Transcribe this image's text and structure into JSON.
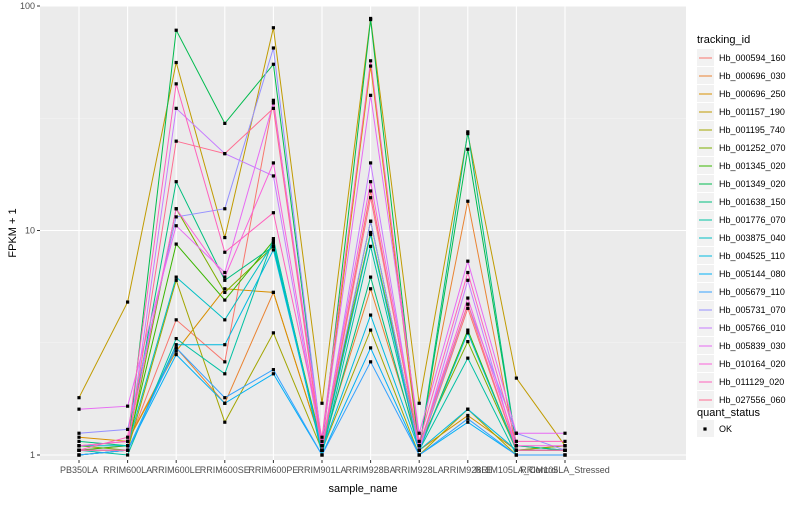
{
  "chart_data": {
    "type": "line",
    "xlabel": "sample_name",
    "ylabel": "FPKM + 1",
    "y_scale": "log10",
    "ylim": [
      0.95,
      100
    ],
    "y_ticks": [
      1,
      10,
      100
    ],
    "y_tick_labels": [
      "1",
      "10",
      "100"
    ],
    "categories": [
      "PB350LA",
      "RRIM600LA",
      "RRIM600LE",
      "RRIM600SE",
      "RRIM600PE",
      "RRIM901LA",
      "RRIM928BA",
      "RRIM928LA",
      "RRIM928LE",
      "RRIM105LA_Control",
      "RRIM105LA_Stressed"
    ],
    "legend_color_title": "tracking_id",
    "legend_shape_title": "quant_status",
    "legend_shape_entries": [
      "OK"
    ],
    "grid": true,
    "legend_position": "right",
    "series": [
      {
        "name": "Hb_000594_160",
        "color": "#F8766D",
        "values": [
          1.05,
          1.1,
          4.0,
          2.6,
          38,
          1.05,
          15,
          1.05,
          4.5,
          1.05,
          1.05
        ]
      },
      {
        "name": "Hb_000696_030",
        "color": "#EA8331",
        "values": [
          1.1,
          1.15,
          3.0,
          1.7,
          5.3,
          1.1,
          5.5,
          1.1,
          13.5,
          1.05,
          1.1
        ]
      },
      {
        "name": "Hb_000696_250",
        "color": "#D89000",
        "values": [
          1.2,
          1.15,
          2.9,
          5.5,
          5.3,
          1.1,
          54,
          1.05,
          1.5,
          1.05,
          1.05
        ]
      },
      {
        "name": "Hb_001157_190",
        "color": "#C09B00",
        "values": [
          1.8,
          4.8,
          56,
          9.3,
          80,
          1.7,
          88,
          1.7,
          27,
          2.2,
          1.1
        ]
      },
      {
        "name": "Hb_001195_740",
        "color": "#A3A500",
        "values": [
          1.0,
          1.05,
          6.0,
          1.4,
          3.5,
          1.05,
          3.6,
          1.0,
          1.6,
          1.0,
          1.0
        ]
      },
      {
        "name": "Hb_001252_070",
        "color": "#7CAE00",
        "values": [
          1.1,
          1.05,
          12.5,
          5.3,
          8.5,
          1.1,
          9.8,
          1.1,
          3.2,
          1.05,
          1.1
        ]
      },
      {
        "name": "Hb_001345_020",
        "color": "#39B600",
        "values": [
          1.05,
          1.1,
          8.7,
          4.9,
          9.0,
          1.05,
          11.0,
          1.05,
          3.6,
          1.05,
          1.05
        ]
      },
      {
        "name": "Hb_001349_020",
        "color": "#00BB4E",
        "values": [
          1.0,
          1.05,
          78,
          30,
          55,
          1.1,
          87,
          1.05,
          23,
          1.1,
          1.05
        ]
      },
      {
        "name": "Hb_001638_150",
        "color": "#00BF7D",
        "values": [
          1.15,
          1.1,
          16.5,
          6.0,
          8.5,
          1.05,
          6.2,
          1.05,
          27.5,
          1.1,
          1.05
        ]
      },
      {
        "name": "Hb_001776_070",
        "color": "#00C1A3",
        "values": [
          1.05,
          1.0,
          3.3,
          2.3,
          9.2,
          1.0,
          8.5,
          1.05,
          2.7,
          1.0,
          1.0
        ]
      },
      {
        "name": "Hb_003875_040",
        "color": "#00BFC4",
        "values": [
          1.1,
          1.1,
          6.2,
          4.0,
          8.8,
          1.05,
          9.6,
          1.05,
          3.5,
          1.05,
          1.05
        ]
      },
      {
        "name": "Hb_004525_110",
        "color": "#00BAE0",
        "values": [
          1.05,
          1.05,
          3.1,
          3.1,
          8.2,
          1.05,
          4.2,
          1.05,
          1.6,
          1.05,
          1.05
        ]
      },
      {
        "name": "Hb_005144_080",
        "color": "#00B0F6",
        "values": [
          1.0,
          1.05,
          2.8,
          1.7,
          2.3,
          1.0,
          3.0,
          1.0,
          1.4,
          1.0,
          1.0
        ]
      },
      {
        "name": "Hb_005679_110",
        "color": "#35A2FF",
        "values": [
          1.0,
          1.05,
          3.0,
          1.8,
          2.4,
          1.0,
          2.6,
          1.0,
          1.45,
          1.0,
          1.0
        ]
      },
      {
        "name": "Hb_005731_070",
        "color": "#9590FF",
        "values": [
          1.25,
          1.3,
          11.5,
          12.5,
          65,
          1.1,
          11.0,
          1.05,
          4.7,
          1.25,
          1.05
        ]
      },
      {
        "name": "Hb_005766_010",
        "color": "#C77CFF",
        "values": [
          1.05,
          1.05,
          35,
          22,
          17.5,
          1.05,
          20,
          1.05,
          6.0,
          1.05,
          1.05
        ]
      },
      {
        "name": "Hb_005839_030",
        "color": "#E76BF3",
        "values": [
          1.6,
          1.65,
          10.5,
          6.5,
          37,
          1.15,
          40,
          1.25,
          7.3,
          1.25,
          1.25
        ]
      },
      {
        "name": "Hb_010164_020",
        "color": "#FA62DB",
        "values": [
          1.1,
          1.15,
          12.5,
          6.2,
          20,
          1.1,
          16.5,
          1.1,
          5.0,
          1.1,
          1.1
        ]
      },
      {
        "name": "Hb_011129_020",
        "color": "#FF62BC",
        "values": [
          1.05,
          1.2,
          45,
          8.0,
          12.0,
          1.2,
          57,
          1.15,
          6.5,
          1.15,
          1.15
        ]
      },
      {
        "name": "Hb_027556_060",
        "color": "#FF6C91",
        "values": [
          1.05,
          1.05,
          25,
          22,
          35,
          1.05,
          14,
          1.1,
          4.7,
          1.05,
          1.05
        ]
      }
    ]
  }
}
